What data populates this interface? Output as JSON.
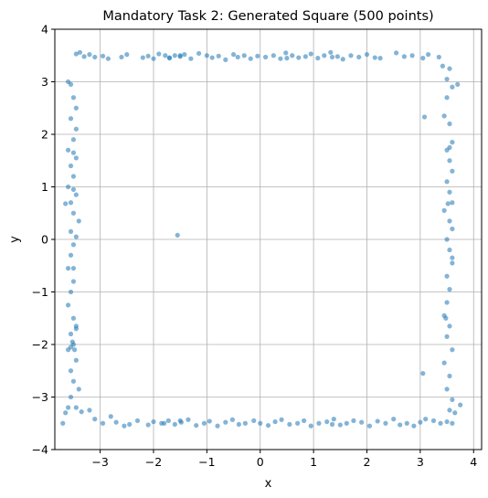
{
  "chart_data": {
    "type": "scatter",
    "title": "Mandatory Task 2: Generated Square (500 points)",
    "xlabel": "x",
    "ylabel": "y",
    "xlim": [
      -3.85,
      4.15
    ],
    "ylim": [
      -4,
      4
    ],
    "xticks": [
      -3,
      -2,
      -1,
      0,
      1,
      2,
      3,
      4
    ],
    "yticks": [
      -4,
      -3,
      -2,
      -1,
      0,
      1,
      2,
      3,
      4
    ],
    "grid": true,
    "point_color": "#1f77b4",
    "series": [
      {
        "points": [
          [
            -3.45,
            3.53
          ],
          [
            -3.38,
            3.56
          ],
          [
            -3.3,
            3.48
          ],
          [
            -3.2,
            3.52
          ],
          [
            -3.1,
            3.47
          ],
          [
            -2.95,
            3.49
          ],
          [
            -2.85,
            3.44
          ],
          [
            -2.6,
            3.47
          ],
          [
            -2.5,
            3.52
          ],
          [
            -2.2,
            3.46
          ],
          [
            -2.1,
            3.49
          ],
          [
            -2.0,
            3.44
          ],
          [
            -1.9,
            3.53
          ],
          [
            -1.78,
            3.5
          ],
          [
            -1.7,
            3.46
          ],
          [
            -1.6,
            3.5
          ],
          [
            -1.5,
            3.48
          ],
          [
            -1.42,
            3.52
          ],
          [
            -1.3,
            3.44
          ],
          [
            -1.15,
            3.54
          ],
          [
            -1.0,
            3.5
          ],
          [
            -0.9,
            3.46
          ],
          [
            -0.78,
            3.49
          ],
          [
            -0.65,
            3.42
          ],
          [
            -0.5,
            3.52
          ],
          [
            -0.42,
            3.47
          ],
          [
            -0.3,
            3.5
          ],
          [
            -0.18,
            3.44
          ],
          [
            -0.05,
            3.49
          ],
          [
            0.1,
            3.47
          ],
          [
            0.25,
            3.5
          ],
          [
            0.38,
            3.44
          ],
          [
            0.48,
            3.55
          ],
          [
            0.6,
            3.5
          ],
          [
            0.72,
            3.46
          ],
          [
            0.85,
            3.48
          ],
          [
            0.95,
            3.53
          ],
          [
            1.08,
            3.45
          ],
          [
            1.2,
            3.5
          ],
          [
            1.32,
            3.56
          ],
          [
            1.45,
            3.48
          ],
          [
            1.55,
            3.43
          ],
          [
            1.7,
            3.5
          ],
          [
            1.85,
            3.47
          ],
          [
            2.0,
            3.52
          ],
          [
            2.15,
            3.46
          ],
          [
            2.25,
            3.45
          ],
          [
            2.55,
            3.55
          ],
          [
            2.7,
            3.48
          ],
          [
            2.85,
            3.5
          ],
          [
            3.05,
            3.45
          ],
          [
            3.15,
            3.52
          ],
          [
            3.35,
            3.47
          ],
          [
            3.42,
            3.3
          ],
          [
            -1.7,
            3.45
          ],
          [
            -1.5,
            3.5
          ],
          [
            1.35,
            3.47
          ],
          [
            0.5,
            3.45
          ],
          [
            -3.45,
            -3.2
          ],
          [
            -3.35,
            -3.28
          ],
          [
            -3.2,
            -3.25
          ],
          [
            -3.1,
            -3.42
          ],
          [
            -2.95,
            -3.5
          ],
          [
            -2.8,
            -3.37
          ],
          [
            -2.7,
            -3.48
          ],
          [
            -2.55,
            -3.55
          ],
          [
            -2.45,
            -3.52
          ],
          [
            -2.3,
            -3.45
          ],
          [
            -2.1,
            -3.53
          ],
          [
            -2.0,
            -3.47
          ],
          [
            -1.85,
            -3.5
          ],
          [
            -1.72,
            -3.45
          ],
          [
            -1.6,
            -3.52
          ],
          [
            -1.48,
            -3.48
          ],
          [
            -1.35,
            -3.43
          ],
          [
            -1.2,
            -3.54
          ],
          [
            -1.05,
            -3.5
          ],
          [
            -0.95,
            -3.46
          ],
          [
            -0.8,
            -3.55
          ],
          [
            -0.65,
            -3.48
          ],
          [
            -0.52,
            -3.43
          ],
          [
            -0.4,
            -3.52
          ],
          [
            -0.28,
            -3.5
          ],
          [
            -0.12,
            -3.45
          ],
          [
            0.0,
            -3.5
          ],
          [
            0.15,
            -3.54
          ],
          [
            0.28,
            -3.47
          ],
          [
            0.4,
            -3.43
          ],
          [
            0.55,
            -3.52
          ],
          [
            0.7,
            -3.5
          ],
          [
            0.82,
            -3.45
          ],
          [
            0.95,
            -3.55
          ],
          [
            1.1,
            -3.5
          ],
          [
            1.25,
            -3.47
          ],
          [
            1.38,
            -3.42
          ],
          [
            1.5,
            -3.53
          ],
          [
            1.62,
            -3.5
          ],
          [
            1.75,
            -3.45
          ],
          [
            1.9,
            -3.48
          ],
          [
            2.05,
            -3.55
          ],
          [
            2.2,
            -3.46
          ],
          [
            2.35,
            -3.5
          ],
          [
            2.5,
            -3.42
          ],
          [
            2.62,
            -3.53
          ],
          [
            2.75,
            -3.5
          ],
          [
            2.88,
            -3.55
          ],
          [
            3.0,
            -3.48
          ],
          [
            3.1,
            -3.42
          ],
          [
            3.25,
            -3.45
          ],
          [
            3.38,
            -3.5
          ],
          [
            3.5,
            -3.47
          ],
          [
            -1.5,
            -3.45
          ],
          [
            -1.8,
            -3.5
          ],
          [
            1.35,
            -3.52
          ],
          [
            -3.6,
            3.0
          ],
          [
            -3.55,
            2.95
          ],
          [
            -3.5,
            2.7
          ],
          [
            -3.45,
            2.5
          ],
          [
            -3.55,
            2.3
          ],
          [
            -3.45,
            2.1
          ],
          [
            -3.5,
            1.9
          ],
          [
            -3.6,
            1.7
          ],
          [
            -3.45,
            1.55
          ],
          [
            -3.55,
            1.4
          ],
          [
            -3.5,
            1.2
          ],
          [
            -3.6,
            1.0
          ],
          [
            -3.45,
            0.85
          ],
          [
            -3.55,
            0.7
          ],
          [
            -3.65,
            0.68
          ],
          [
            -3.5,
            0.5
          ],
          [
            -3.4,
            0.35
          ],
          [
            -3.55,
            0.15
          ],
          [
            -3.45,
            0.05
          ],
          [
            -3.5,
            -0.1
          ],
          [
            -3.55,
            -0.3
          ],
          [
            -3.6,
            -0.55
          ],
          [
            -3.5,
            -0.8
          ],
          [
            -3.55,
            -1.0
          ],
          [
            -3.6,
            -1.25
          ],
          [
            -3.5,
            -1.5
          ],
          [
            -3.45,
            -1.65
          ],
          [
            -3.55,
            -1.8
          ],
          [
            -3.5,
            -2.0
          ],
          [
            -3.6,
            -2.1
          ],
          [
            -3.45,
            -2.3
          ],
          [
            -3.55,
            -2.5
          ],
          [
            -3.5,
            -2.7
          ],
          [
            -3.4,
            -2.85
          ],
          [
            -3.55,
            -3.0
          ],
          [
            -3.6,
            -3.2
          ],
          [
            -3.65,
            -3.3
          ],
          [
            -3.7,
            -3.5
          ],
          [
            -3.55,
            -2.05
          ],
          [
            -3.5,
            1.65
          ],
          [
            -3.5,
            0.95
          ],
          [
            -3.45,
            -1.7
          ],
          [
            -3.48,
            -2.1
          ],
          [
            -3.52,
            -1.95
          ],
          [
            -3.5,
            -0.55
          ],
          [
            3.55,
            3.25
          ],
          [
            3.5,
            3.05
          ],
          [
            3.6,
            2.9
          ],
          [
            3.7,
            2.95
          ],
          [
            3.5,
            2.7
          ],
          [
            3.45,
            2.35
          ],
          [
            3.55,
            2.2
          ],
          [
            3.6,
            1.85
          ],
          [
            3.5,
            1.7
          ],
          [
            3.55,
            1.5
          ],
          [
            3.6,
            1.3
          ],
          [
            3.5,
            1.1
          ],
          [
            3.55,
            0.9
          ],
          [
            3.6,
            0.7
          ],
          [
            3.45,
            0.55
          ],
          [
            3.55,
            0.35
          ],
          [
            3.6,
            0.2
          ],
          [
            3.5,
            0.0
          ],
          [
            3.55,
            -0.2
          ],
          [
            3.6,
            -0.45
          ],
          [
            3.5,
            -0.7
          ],
          [
            3.55,
            -0.95
          ],
          [
            3.5,
            -1.2
          ],
          [
            3.45,
            -1.45
          ],
          [
            3.55,
            -1.65
          ],
          [
            3.5,
            -1.85
          ],
          [
            3.6,
            -2.1
          ],
          [
            3.45,
            -2.35
          ],
          [
            3.55,
            -2.6
          ],
          [
            3.5,
            -2.85
          ],
          [
            3.6,
            -3.05
          ],
          [
            3.55,
            -3.25
          ],
          [
            3.75,
            -3.15
          ],
          [
            3.65,
            -3.3
          ],
          [
            3.6,
            -3.5
          ],
          [
            3.08,
            2.33
          ],
          [
            3.05,
            -2.55
          ],
          [
            3.52,
            0.68
          ],
          [
            3.48,
            -1.5
          ],
          [
            3.55,
            1.75
          ],
          [
            3.6,
            -0.35
          ],
          [
            -1.55,
            0.08
          ]
        ]
      }
    ]
  }
}
